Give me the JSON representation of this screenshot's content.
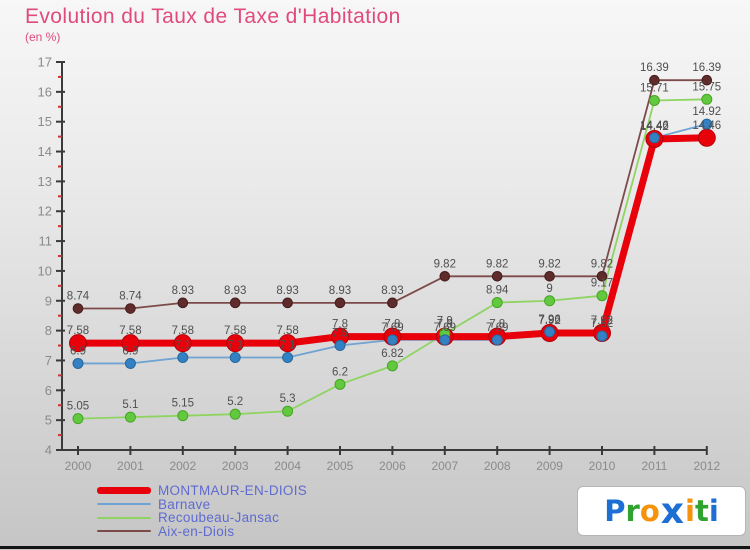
{
  "header": {
    "title": "Evolution du Taux de Taxe d'Habitation",
    "subtitle": "(en %)"
  },
  "chart_data": {
    "type": "line",
    "title": "Evolution du Taux de Taxe d'Habitation",
    "subtitle": "(en %)",
    "x": [
      2000,
      2001,
      2002,
      2003,
      2004,
      2005,
      2006,
      2007,
      2008,
      2009,
      2010,
      2011,
      2012
    ],
    "ylim": [
      4,
      17
    ],
    "ytick_step": 1,
    "ytick_minor_step": 0.5,
    "grid": false,
    "legend_position": "bottom-left",
    "series": [
      {
        "name": "MONTMAUR-EN-DIOIS",
        "line_color": "#e8000b",
        "dot_color": "#e8000b",
        "dot_stroke": "#b50008",
        "line_width": 7,
        "dot_radius": 8.5,
        "values": [
          7.58,
          7.58,
          7.58,
          7.58,
          7.58,
          7.8,
          7.8,
          7.8,
          7.8,
          7.92,
          7.92,
          14.42,
          14.46
        ],
        "labels": [
          "7.58",
          "7.58",
          "7.58",
          "7.58",
          "7.58",
          "7.8",
          "7.8",
          "7.8",
          "7.8",
          "7.92",
          "7.92",
          "14.42",
          "14.46"
        ]
      },
      {
        "name": "Barnave",
        "line_color": "#6fa3d2",
        "dot_color": "#3381c2",
        "dot_stroke": "#27689e",
        "line_width": 1.8,
        "dot_radius": 5,
        "values": [
          6.9,
          6.9,
          7.1,
          7.1,
          7.1,
          7.5,
          7.69,
          7.69,
          7.69,
          7.96,
          7.82,
          14.46,
          14.92
        ],
        "labels": [
          "6.9",
          "6.9",
          "7.1",
          "7.1",
          "7.1",
          "7.5",
          "7.69",
          "7.69",
          "7.69",
          "7.96",
          "7.82",
          "14.46",
          "14.92"
        ]
      },
      {
        "name": "Recoubeau-Jansac",
        "line_color": "#8fd463",
        "dot_color": "#62c93e",
        "dot_stroke": "#46a526",
        "line_width": 1.8,
        "dot_radius": 5,
        "values": [
          5.05,
          5.1,
          5.15,
          5.2,
          5.3,
          6.2,
          6.82,
          7.9,
          8.94,
          9,
          9.17,
          15.71,
          15.75
        ],
        "labels": [
          "5.05",
          "5.1",
          "5.15",
          "5.2",
          "5.3",
          "6.2",
          "6.82",
          "7.9",
          "8.94",
          "9",
          "9.17",
          "15.71",
          "15.75"
        ]
      },
      {
        "name": "Aix-en-Diois",
        "line_color": "#7d4a4a",
        "dot_color": "#5f2b2b",
        "dot_stroke": "#451d1d",
        "line_width": 1.8,
        "dot_radius": 4.8,
        "values": [
          8.74,
          8.74,
          8.93,
          8.93,
          8.93,
          8.93,
          8.93,
          9.82,
          9.82,
          9.82,
          9.82,
          16.39,
          16.39
        ],
        "labels": [
          "8.74",
          "8.74",
          "8.93",
          "8.93",
          "8.93",
          "8.93",
          "8.93",
          "9.82",
          "9.82",
          "9.82",
          "9.82",
          "16.39",
          "16.39"
        ]
      }
    ]
  },
  "logo": {
    "letters": [
      {
        "ch": "P",
        "color": "#1e6fd4",
        "big": false
      },
      {
        "ch": "r",
        "color": "#2fa32e",
        "big": false
      },
      {
        "ch": "o",
        "color": "#f5930a",
        "big": false
      },
      {
        "ch": "x",
        "color": "#1e6fd4",
        "big": true
      },
      {
        "ch": "i",
        "color": "#f5930a",
        "big": false
      },
      {
        "ch": "t",
        "color": "#2fa32e",
        "big": false
      },
      {
        "ch": "i",
        "color": "#1e6fd4",
        "big": false
      }
    ]
  },
  "styles": {
    "title_color": "#e04a7e",
    "legend_text_color": "#5f6bd0",
    "axis_color": "#3a3a3a",
    "tick_label_color": "#8a8a8a",
    "data_label_color": "#4f4f4f",
    "minor_tick_color": "#d03030",
    "background_top": "#f7f7f7",
    "background_bottom": "#c5c5c5"
  }
}
